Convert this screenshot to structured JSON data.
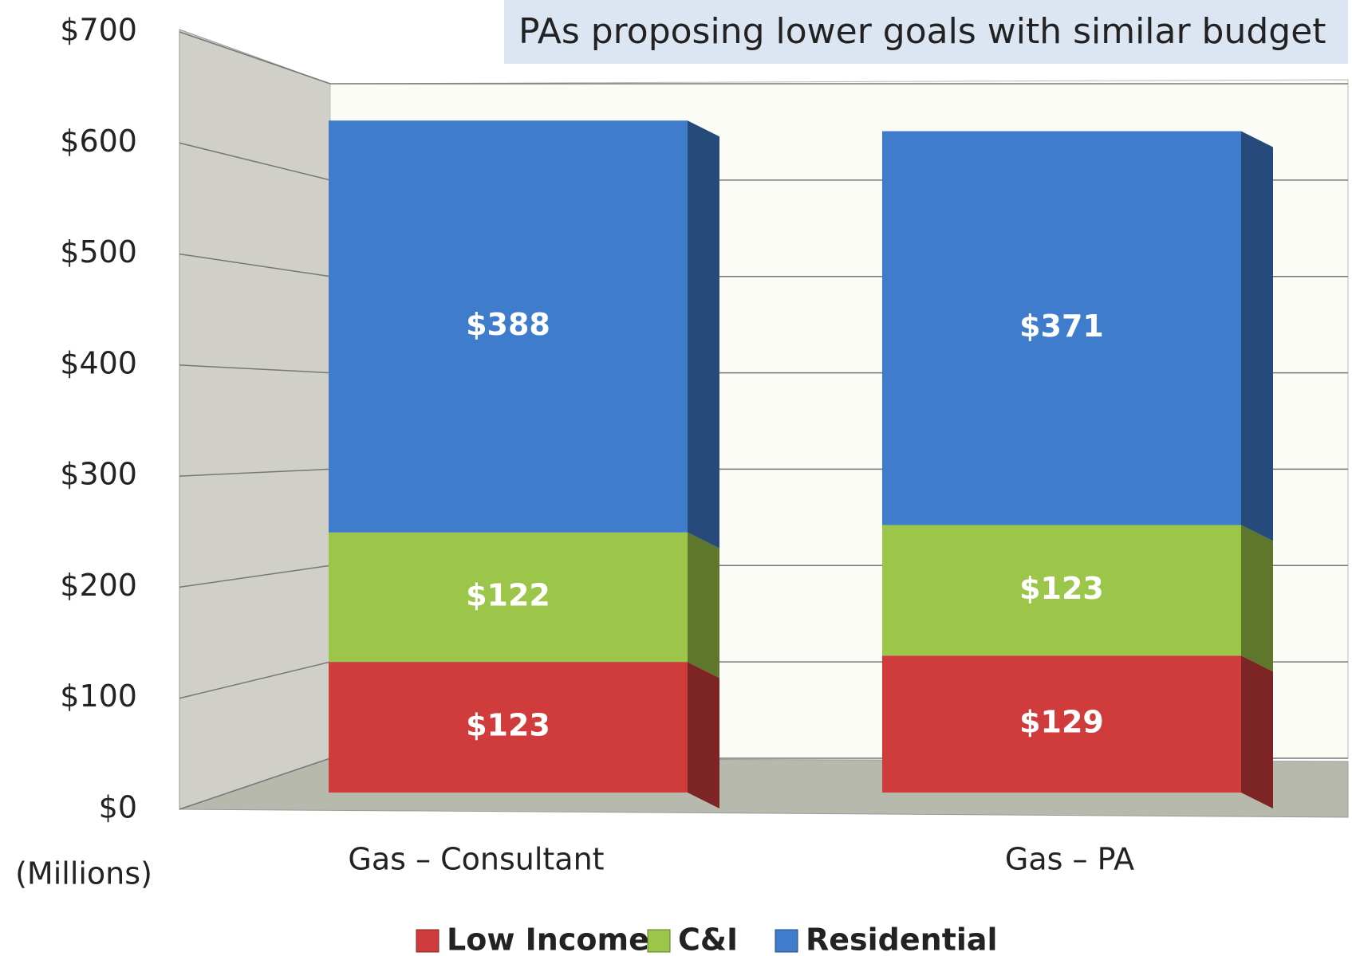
{
  "chart_data": {
    "type": "stacked_bar",
    "annotation": "PAs proposing lower goals with similar budget",
    "ylabel": "(Millions)",
    "categories": [
      "Gas – Consultant",
      "Gas – PA"
    ],
    "series": [
      {
        "name": "Low Income",
        "color": "#d03c3c",
        "values": [
          123,
          129
        ],
        "value_labels": [
          "$123",
          "$129"
        ]
      },
      {
        "name": "C&I",
        "color": "#9cc64a",
        "values": [
          122,
          123
        ],
        "value_labels": [
          "$122",
          "$123"
        ]
      },
      {
        "name": "Residential",
        "color": "#3f7ccc",
        "values": [
          388,
          371
        ],
        "value_labels": [
          "$388",
          "$371"
        ]
      }
    ],
    "ylim": [
      0,
      700
    ],
    "yticks": [
      {
        "value": 0,
        "label": "$0"
      },
      {
        "value": 100,
        "label": "$100"
      },
      {
        "value": 200,
        "label": "$200"
      },
      {
        "value": 300,
        "label": "$300"
      },
      {
        "value": 400,
        "label": "$400"
      },
      {
        "value": 500,
        "label": "$500"
      },
      {
        "value": 600,
        "label": "$600"
      },
      {
        "value": 700,
        "label": "$700"
      }
    ],
    "grid": true,
    "legend": "bottom"
  }
}
